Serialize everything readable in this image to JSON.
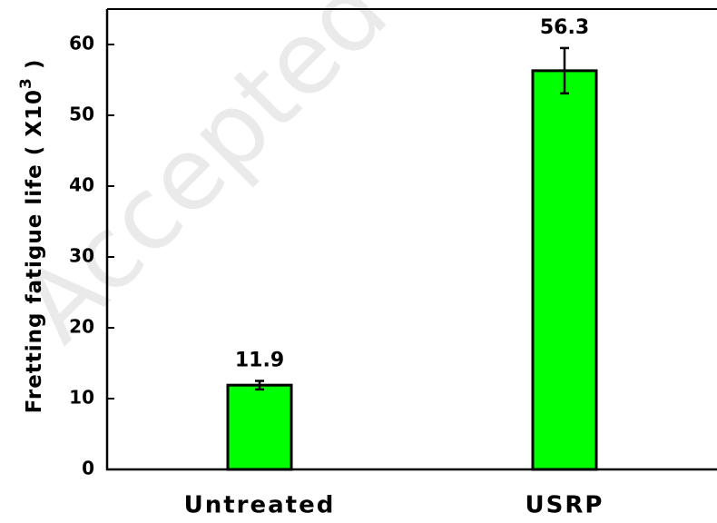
{
  "chart_data": {
    "type": "bar",
    "watermark": "Accepted",
    "ylabel": "Fretting fatigue life ( X10",
    "ylabel_sup": "3",
    "ylabel_end": " )",
    "categories": [
      "Untreated",
      "USRP"
    ],
    "values": [
      11.9,
      56.3
    ],
    "errors": [
      0.6,
      3.2
    ],
    "color": "#00ff00",
    "ylim": [
      0,
      65
    ],
    "yticks": [
      0,
      10,
      20,
      30,
      40,
      50,
      60
    ]
  }
}
